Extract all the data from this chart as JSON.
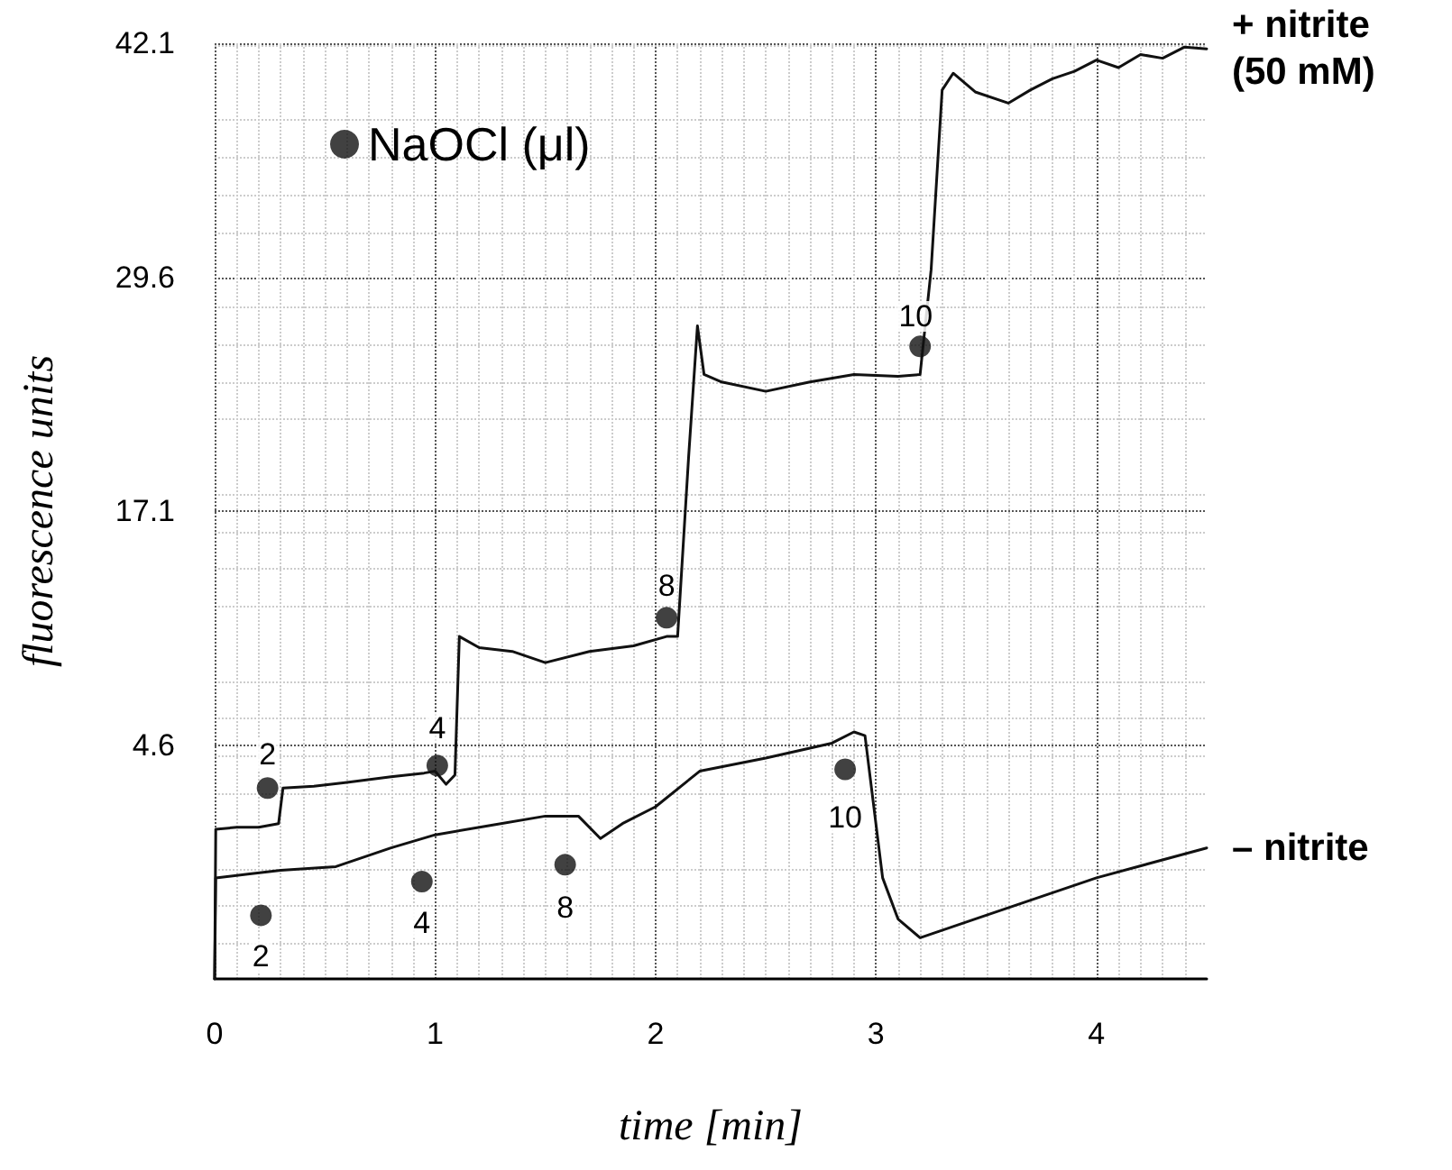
{
  "chart_data": {
    "type": "line",
    "xlabel": "time [min]",
    "ylabel": "fluorescence units",
    "xlim": [
      0,
      4.5
    ],
    "xticks": [
      0,
      1,
      2,
      3,
      4
    ],
    "ylim": [
      -7.9,
      42.1
    ],
    "yticks": [
      4.6,
      17.1,
      29.6,
      42.1
    ],
    "grid": true,
    "legend": "top left",
    "marker": "none",
    "annotations": [
      {
        "text": "2",
        "x": 0.24,
        "y": 4.1
      },
      {
        "text": "4",
        "x": 1.01,
        "y": 5.5
      },
      {
        "text": "8",
        "x": 2.05,
        "y": 13.1
      },
      {
        "text": "10",
        "x": 3.18,
        "y": 27.5
      },
      {
        "text": "2",
        "x": 0.21,
        "y": -6.7
      },
      {
        "text": "4",
        "x": 0.94,
        "y": -4.9
      },
      {
        "text": "8",
        "x": 1.59,
        "y": -4.1
      },
      {
        "text": "10",
        "x": 2.86,
        "y": 0.7
      }
    ],
    "series": [
      {
        "name": "+ nitrite (50 mM)",
        "color": "#111111",
        "x": [
          0,
          0.005,
          0.1,
          0.2,
          0.29,
          0.31,
          0.45,
          0.6,
          0.8,
          0.95,
          1.0,
          1.05,
          1.09,
          1.11,
          1.2,
          1.35,
          1.5,
          1.7,
          1.9,
          2.05,
          2.1,
          2.15,
          2.19,
          2.22,
          2.3,
          2.5,
          2.7,
          2.9,
          3.1,
          3.2,
          3.25,
          3.3,
          3.35,
          3.45,
          3.6,
          3.7,
          3.8,
          3.9,
          4.0,
          4.1,
          4.2,
          4.3,
          4.4,
          4.5
        ],
        "values": [
          -7.9,
          0.1,
          0.2,
          0.2,
          0.4,
          2.3,
          2.4,
          2.6,
          2.9,
          3.1,
          3.2,
          2.5,
          3.0,
          10.4,
          9.8,
          9.6,
          9.0,
          9.6,
          9.9,
          10.4,
          10.4,
          20.0,
          27.0,
          24.4,
          24.0,
          23.5,
          24.0,
          24.4,
          24.3,
          24.4,
          30.0,
          39.6,
          40.5,
          39.5,
          38.9,
          39.6,
          40.2,
          40.6,
          41.2,
          40.8,
          41.5,
          41.3,
          41.9,
          41.8
        ]
      },
      {
        "name": "– nitrite",
        "color": "#111111",
        "x": [
          0,
          0.005,
          0.15,
          0.3,
          0.55,
          0.8,
          1.0,
          1.25,
          1.5,
          1.65,
          1.75,
          1.85,
          2.0,
          2.2,
          2.5,
          2.8,
          2.9,
          2.95,
          3.03,
          3.1,
          3.2,
          3.35,
          3.5,
          3.75,
          4.0,
          4.25,
          4.5
        ],
        "values": [
          -7.9,
          -2.5,
          -2.3,
          -2.1,
          -1.9,
          -0.9,
          -0.2,
          0.3,
          0.8,
          0.8,
          -0.4,
          0.4,
          1.3,
          3.2,
          3.9,
          4.7,
          5.3,
          5.1,
          -2.5,
          -4.7,
          -5.7,
          -5.1,
          -4.5,
          -3.5,
          -2.5,
          -1.7,
          -0.9
        ]
      },
      {
        "name": "NaOCl (μl)",
        "type": "scatter",
        "color": "#111111",
        "marker": "circle",
        "x": [
          0.24,
          1.01,
          2.05,
          3.2
        ],
        "values": [
          2.3,
          3.5,
          11.4,
          25.9
        ]
      },
      {
        "type": "scatter",
        "color": "#111111",
        "marker": "circle",
        "x": [
          0.21,
          0.94,
          1.59,
          2.86
        ],
        "values": [
          -4.5,
          -2.7,
          -1.8,
          3.3
        ]
      }
    ]
  }
}
